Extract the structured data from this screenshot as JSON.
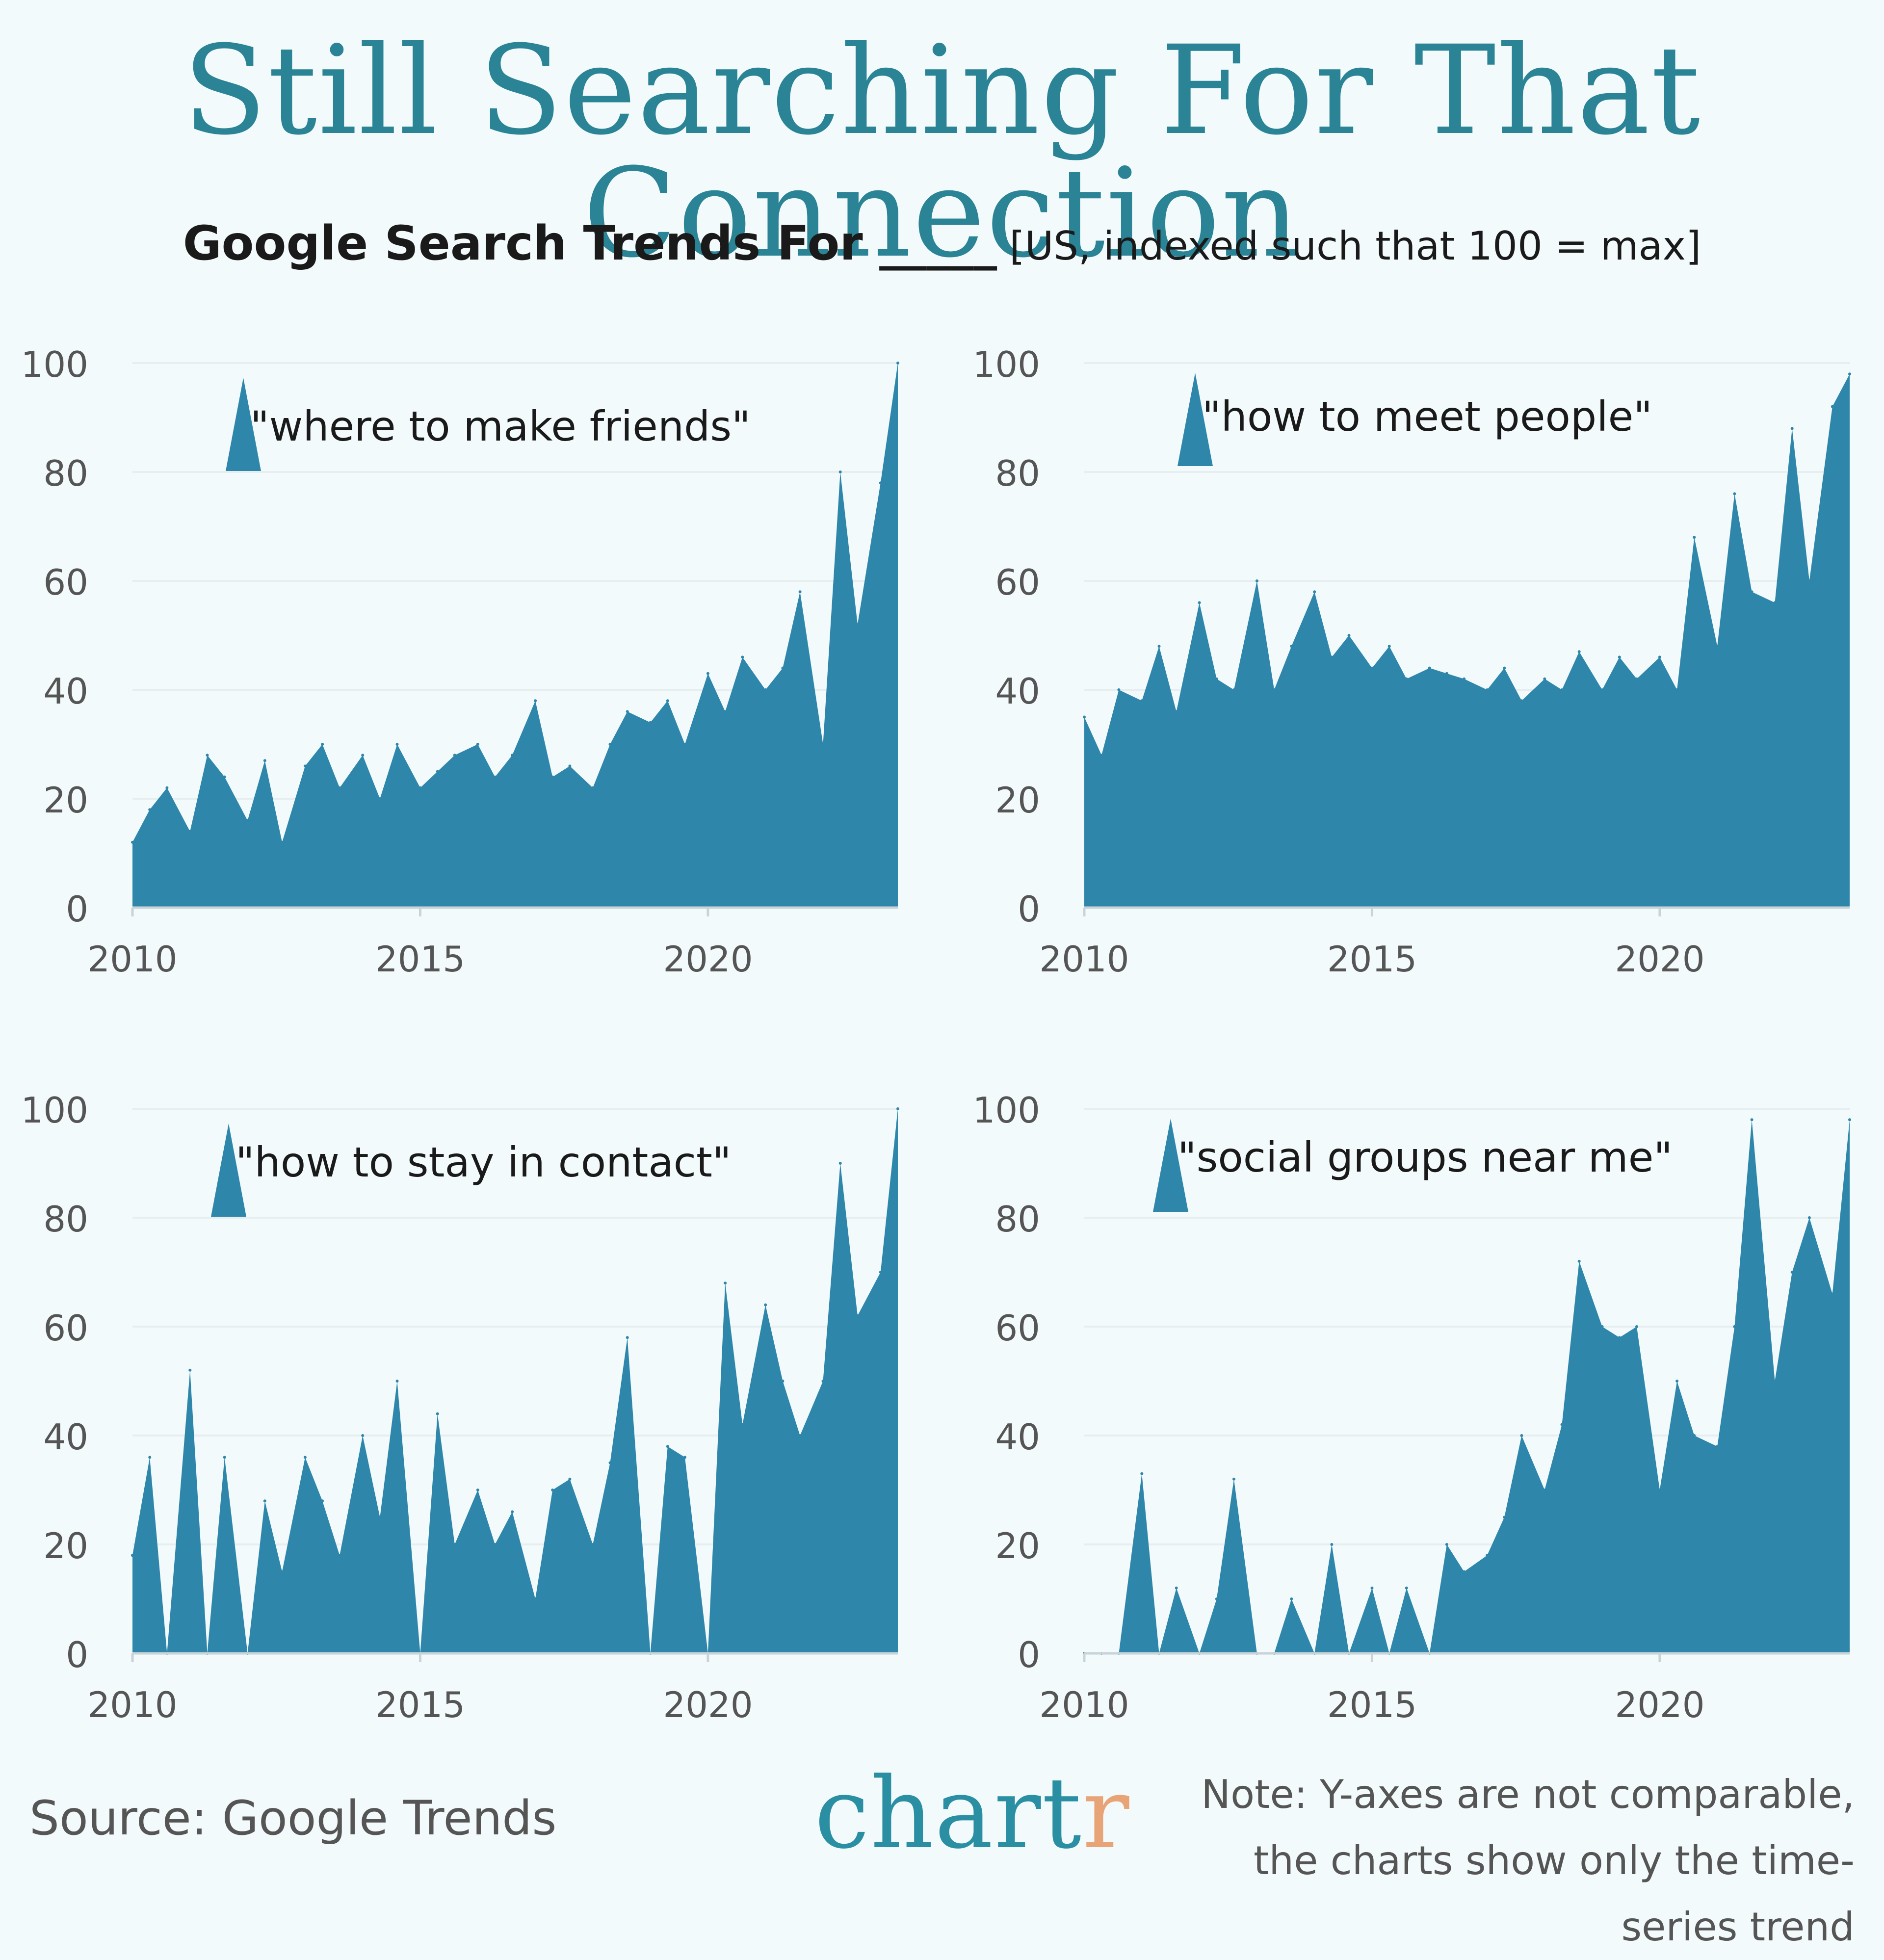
{
  "title": "Still Searching For That Connection",
  "subtitle_bold": "Google Search Trends For _____",
  "subtitle_light": " [US, indexed such that 100 = max]",
  "source": "Source: Google Trends",
  "brand_main": "chart",
  "brand_accent": "r",
  "note": "Note: Y-axes are not comparable, the charts show only the time-series trend",
  "colors": {
    "fill": "#2e86ab",
    "title": "#2b8496",
    "grid": "#e6eef0"
  },
  "chart_data": [
    {
      "type": "area",
      "series_label": "\"where to make friends\"",
      "x_ticks": [
        "2010",
        "2015",
        "2020"
      ],
      "y_ticks": [
        "0",
        "20",
        "40",
        "60",
        "80",
        "100"
      ],
      "xlim": [
        2010,
        2023.3
      ],
      "ylim": [
        0,
        100
      ],
      "x": [
        2010.0,
        2010.3,
        2010.6,
        2011.0,
        2011.3,
        2011.6,
        2012.0,
        2012.3,
        2012.6,
        2013.0,
        2013.3,
        2013.6,
        2014.0,
        2014.3,
        2014.6,
        2015.0,
        2015.3,
        2015.6,
        2016.0,
        2016.3,
        2016.6,
        2017.0,
        2017.3,
        2017.6,
        2018.0,
        2018.3,
        2018.6,
        2019.0,
        2019.3,
        2019.6,
        2020.0,
        2020.3,
        2020.6,
        2021.0,
        2021.3,
        2021.6,
        2022.0,
        2022.3,
        2022.6,
        2023.0,
        2023.3
      ],
      "values": [
        12,
        18,
        22,
        14,
        28,
        24,
        16,
        27,
        12,
        26,
        30,
        22,
        28,
        20,
        30,
        22,
        25,
        28,
        30,
        24,
        28,
        38,
        24,
        26,
        22,
        30,
        36,
        34,
        38,
        30,
        43,
        36,
        46,
        40,
        44,
        58,
        30,
        80,
        52,
        78,
        100
      ]
    },
    {
      "type": "area",
      "series_label": "\"how to meet people\"",
      "x_ticks": [
        "2010",
        "2015",
        "2020"
      ],
      "y_ticks": [
        "0",
        "20",
        "40",
        "60",
        "80",
        "100"
      ],
      "xlim": [
        2010,
        2023.3
      ],
      "ylim": [
        0,
        100
      ],
      "x": [
        2010.0,
        2010.3,
        2010.6,
        2011.0,
        2011.3,
        2011.6,
        2012.0,
        2012.3,
        2012.6,
        2013.0,
        2013.3,
        2013.6,
        2014.0,
        2014.3,
        2014.6,
        2015.0,
        2015.3,
        2015.6,
        2016.0,
        2016.3,
        2016.6,
        2017.0,
        2017.3,
        2017.6,
        2018.0,
        2018.3,
        2018.6,
        2019.0,
        2019.3,
        2019.6,
        2020.0,
        2020.3,
        2020.6,
        2021.0,
        2021.3,
        2021.6,
        2022.0,
        2022.3,
        2022.6,
        2023.0,
        2023.3
      ],
      "values": [
        35,
        28,
        40,
        38,
        48,
        36,
        56,
        42,
        40,
        60,
        40,
        48,
        58,
        46,
        50,
        44,
        48,
        42,
        44,
        43,
        42,
        40,
        44,
        38,
        42,
        40,
        47,
        40,
        46,
        42,
        46,
        40,
        68,
        48,
        76,
        58,
        56,
        88,
        60,
        92,
        98
      ]
    },
    {
      "type": "area",
      "series_label": "\"how to stay in contact\"",
      "x_ticks": [
        "2010",
        "2015",
        "2020"
      ],
      "y_ticks": [
        "0",
        "20",
        "40",
        "60",
        "80",
        "100"
      ],
      "xlim": [
        2010,
        2023.3
      ],
      "ylim": [
        0,
        100
      ],
      "x": [
        2010.0,
        2010.3,
        2010.6,
        2011.0,
        2011.3,
        2011.6,
        2012.0,
        2012.3,
        2012.6,
        2013.0,
        2013.3,
        2013.6,
        2014.0,
        2014.3,
        2014.6,
        2015.0,
        2015.3,
        2015.6,
        2016.0,
        2016.3,
        2016.6,
        2017.0,
        2017.3,
        2017.6,
        2018.0,
        2018.3,
        2018.6,
        2019.0,
        2019.3,
        2019.6,
        2020.0,
        2020.3,
        2020.6,
        2021.0,
        2021.3,
        2021.6,
        2022.0,
        2022.3,
        2022.6,
        2023.0,
        2023.3
      ],
      "values": [
        18,
        36,
        0,
        52,
        0,
        36,
        0,
        28,
        15,
        36,
        28,
        18,
        40,
        25,
        50,
        0,
        44,
        20,
        30,
        20,
        26,
        10,
        30,
        32,
        20,
        35,
        58,
        0,
        38,
        36,
        0,
        68,
        42,
        64,
        50,
        40,
        50,
        90,
        62,
        70,
        100
      ]
    },
    {
      "type": "area",
      "series_label": "\"social groups near me\"",
      "x_ticks": [
        "2010",
        "2015",
        "2020"
      ],
      "y_ticks": [
        "0",
        "20",
        "40",
        "60",
        "80",
        "100"
      ],
      "xlim": [
        2010,
        2023.3
      ],
      "ylim": [
        0,
        100
      ],
      "x": [
        2010.0,
        2010.3,
        2010.6,
        2011.0,
        2011.3,
        2011.6,
        2012.0,
        2012.3,
        2012.6,
        2013.0,
        2013.3,
        2013.6,
        2014.0,
        2014.3,
        2014.6,
        2015.0,
        2015.3,
        2015.6,
        2016.0,
        2016.3,
        2016.6,
        2017.0,
        2017.3,
        2017.6,
        2018.0,
        2018.3,
        2018.6,
        2019.0,
        2019.3,
        2019.6,
        2020.0,
        2020.3,
        2020.6,
        2021.0,
        2021.3,
        2021.6,
        2022.0,
        2022.3,
        2022.6,
        2023.0,
        2023.3
      ],
      "values": [
        0,
        0,
        0,
        33,
        0,
        12,
        0,
        10,
        32,
        0,
        0,
        10,
        0,
        20,
        0,
        12,
        0,
        12,
        0,
        20,
        15,
        18,
        25,
        40,
        30,
        42,
        72,
        60,
        58,
        60,
        30,
        50,
        40,
        38,
        60,
        98,
        50,
        70,
        80,
        66,
        98
      ]
    }
  ]
}
